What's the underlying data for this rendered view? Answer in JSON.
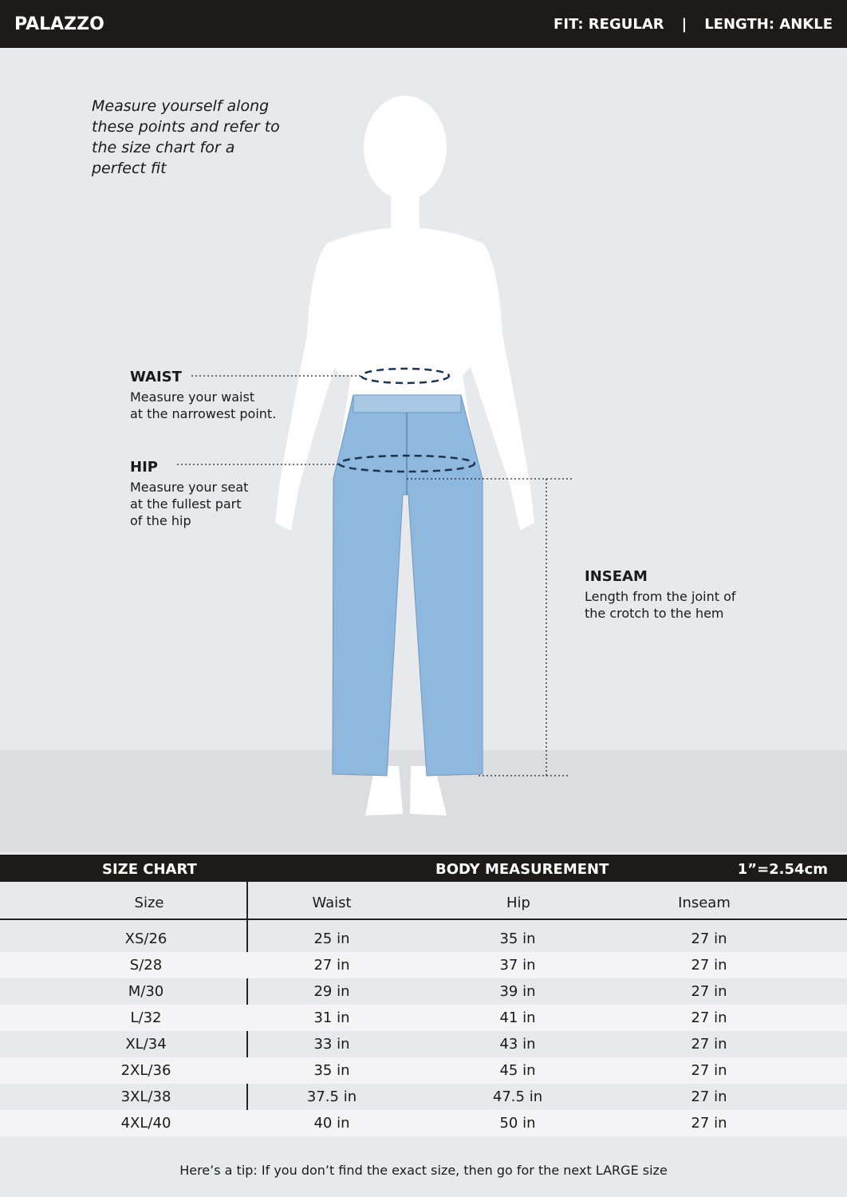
{
  "header": {
    "title": "PALAZZO",
    "fit": "FIT: REGULAR",
    "separator": "|",
    "length": "LENGTH: ANKLE"
  },
  "intro": "Measure yourself along these points and refer to the size chart for a perfect fit",
  "waist": {
    "title": "WAIST",
    "desc1": "Measure your waist",
    "desc2": "at the narrowest point."
  },
  "hip": {
    "title": "HIP",
    "desc1": "Measure your seat",
    "desc2": "at the fullest part",
    "desc3": "of the hip"
  },
  "inseam": {
    "title": "INSEAM",
    "desc1": "Length from the joint of",
    "desc2": "the crotch to the hem"
  },
  "table": {
    "title": "SIZE CHART",
    "group": "BODY MEASUREMENT",
    "conversion": "1”=2.54cm",
    "columns": [
      "Size",
      "Waist",
      "Hip",
      "Inseam"
    ],
    "rows": [
      [
        "XS/26",
        "25 in",
        "35 in",
        "27 in"
      ],
      [
        "S/28",
        "27 in",
        "37 in",
        "27 in"
      ],
      [
        "M/30",
        "29 in",
        "39 in",
        "27 in"
      ],
      [
        "L/32",
        "31 in",
        "41 in",
        "27 in"
      ],
      [
        "XL/34",
        "33 in",
        "43 in",
        "27 in"
      ],
      [
        "2XL/36",
        "35 in",
        "45 in",
        "27 in"
      ],
      [
        "3XL/38",
        "37.5 in",
        "47.5 in",
        "27 in"
      ],
      [
        "4XL/40",
        "40 in",
        "50 in",
        "27 in"
      ]
    ]
  },
  "tip": "Here’s a tip: If you don’t find the exact size, then go for the next LARGE size",
  "colors": {
    "header": "#1d1a18",
    "pants": "#8fb8de",
    "background": "#e8e9ed"
  }
}
